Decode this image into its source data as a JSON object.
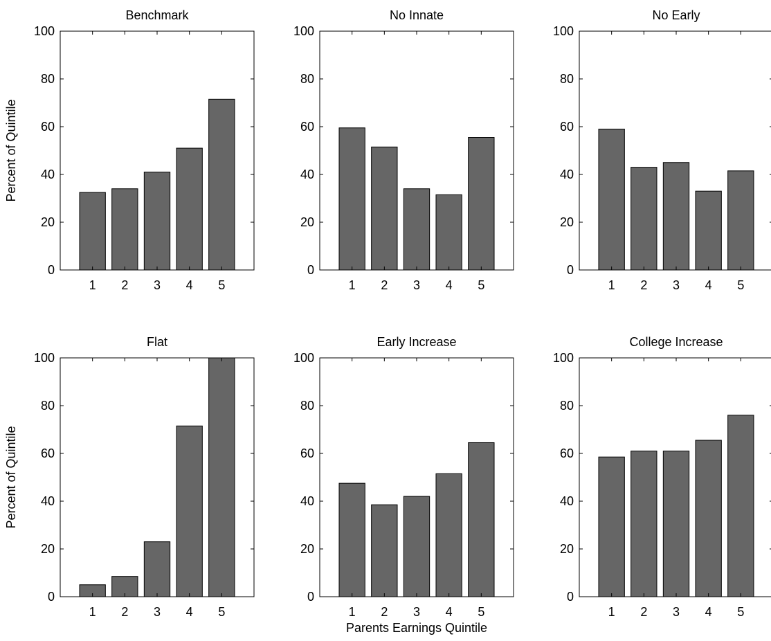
{
  "figure": {
    "xlabel": "Parents Earnings Quintile",
    "ylabel": "Percent of Quintile"
  },
  "chart_data": [
    {
      "type": "bar",
      "title": "Benchmark",
      "categories": [
        "1",
        "2",
        "3",
        "4",
        "5"
      ],
      "values": [
        32.5,
        34,
        41,
        51,
        71.5
      ],
      "xlabel": "",
      "ylabel": "Percent of Quintile",
      "ylim": [
        0,
        100
      ],
      "yticks": [
        "0",
        "20",
        "40",
        "60",
        "80",
        "100"
      ],
      "grid": false,
      "bar_color": "#666666"
    },
    {
      "type": "bar",
      "title": "No Innate",
      "categories": [
        "1",
        "2",
        "3",
        "4",
        "5"
      ],
      "values": [
        59.5,
        51.5,
        34,
        31.5,
        55.5
      ],
      "xlabel": "",
      "ylabel": "",
      "ylim": [
        0,
        100
      ],
      "yticks": [
        "0",
        "20",
        "40",
        "60",
        "80",
        "100"
      ],
      "grid": false,
      "bar_color": "#666666"
    },
    {
      "type": "bar",
      "title": "No Early",
      "categories": [
        "1",
        "2",
        "3",
        "4",
        "5"
      ],
      "values": [
        59,
        43,
        45,
        33,
        41.5
      ],
      "xlabel": "",
      "ylabel": "",
      "ylim": [
        0,
        100
      ],
      "yticks": [
        "0",
        "20",
        "40",
        "60",
        "80",
        "100"
      ],
      "grid": false,
      "bar_color": "#666666"
    },
    {
      "type": "bar",
      "title": "Flat",
      "categories": [
        "1",
        "2",
        "3",
        "4",
        "5"
      ],
      "values": [
        5,
        8.5,
        23,
        71.5,
        100
      ],
      "xlabel": "",
      "ylabel": "Percent of Quintile",
      "ylim": [
        0,
        100
      ],
      "yticks": [
        "0",
        "20",
        "40",
        "60",
        "80",
        "100"
      ],
      "grid": false,
      "bar_color": "#666666"
    },
    {
      "type": "bar",
      "title": "Early Increase",
      "categories": [
        "1",
        "2",
        "3",
        "4",
        "5"
      ],
      "values": [
        47.5,
        38.5,
        42,
        51.5,
        64.5
      ],
      "xlabel": "Parents Earnings Quintile",
      "ylabel": "",
      "ylim": [
        0,
        100
      ],
      "yticks": [
        "0",
        "20",
        "40",
        "60",
        "80",
        "100"
      ],
      "grid": false,
      "bar_color": "#666666"
    },
    {
      "type": "bar",
      "title": "College Increase",
      "categories": [
        "1",
        "2",
        "3",
        "4",
        "5"
      ],
      "values": [
        58.5,
        61,
        61,
        65.5,
        76
      ],
      "xlabel": "",
      "ylabel": "",
      "ylim": [
        0,
        100
      ],
      "yticks": [
        "0",
        "20",
        "40",
        "60",
        "80",
        "100"
      ],
      "grid": false,
      "bar_color": "#666666"
    }
  ]
}
